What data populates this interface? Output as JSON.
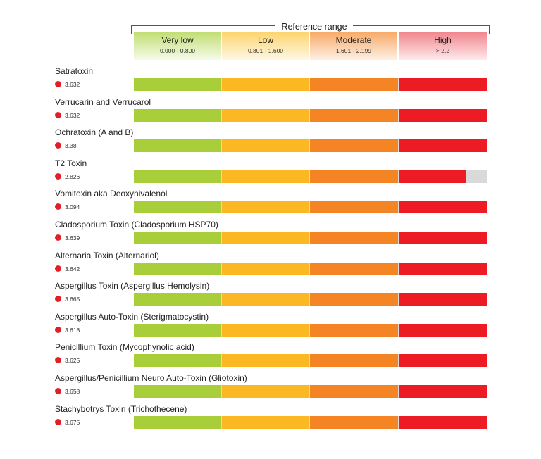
{
  "reference_title": "Reference range",
  "ranges": [
    {
      "label": "Very low",
      "range": "0.000 - 0.800",
      "color": "#a8cf3a"
    },
    {
      "label": "Low",
      "range": "0.801 - 1.600",
      "color": "#fbb823"
    },
    {
      "label": "Moderate",
      "range": "1.601 - 2.199",
      "color": "#f58524"
    },
    {
      "label": "High",
      "range": "> 2.2",
      "color": "#ed1c24"
    }
  ],
  "marker_color": "#e31e24",
  "track_color": "#d9d9d9",
  "chart_data": {
    "type": "bar",
    "orientation": "horizontal",
    "x_max": 3.0,
    "categories": [
      "Satratoxin",
      "Verrucarin and Verrucarol",
      "Ochratoxin (A and B)",
      "T2 Toxin",
      "Vomitoxin aka Deoxynivalenol",
      "Cladosporium Toxin (Cladosporium HSP70)",
      "Alternaria Toxin (Alternariol)",
      "Aspergillus Toxin (Aspergillus Hemolysin)",
      "Aspergillus Auto-Toxin (Sterigmatocystin)",
      "Penicillium Toxin (Mycophynolic acid)",
      "Aspergillus/Penicillium Neuro Auto-Toxin (Gliotoxin)",
      "Stachybotrys Toxin (Trichothecene)"
    ],
    "values": [
      3.632,
      3.632,
      3.38,
      2.826,
      3.094,
      3.639,
      3.642,
      3.665,
      3.618,
      3.625,
      3.658,
      3.675
    ],
    "value_labels": [
      "3.632",
      "3.632",
      "3.38",
      "2.826",
      "3.094",
      "3.639",
      "3.642",
      "3.665",
      "3.618",
      "3.625",
      "3.658",
      "3.675"
    ]
  }
}
